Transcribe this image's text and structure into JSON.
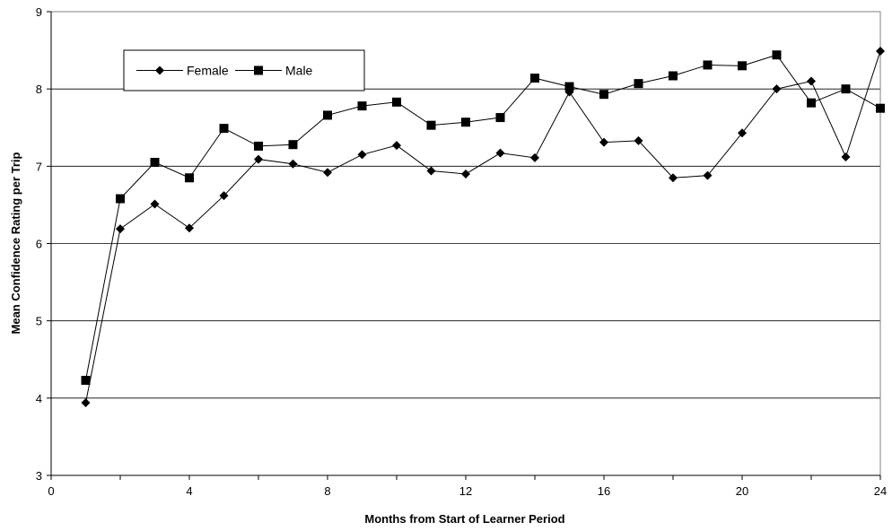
{
  "chart_data": {
    "type": "line",
    "title": "",
    "xlabel": "Months from Start of Learner Period",
    "ylabel": "Mean Confidence Rating per Trip",
    "xlim": [
      0,
      24
    ],
    "ylim": [
      3,
      9
    ],
    "x_ticks": [
      0,
      4,
      8,
      12,
      16,
      20,
      24
    ],
    "y_ticks": [
      3,
      4,
      5,
      6,
      7,
      8,
      9
    ],
    "grid": "horizontal",
    "legend_position": "top-left",
    "x": [
      1,
      2,
      3,
      4,
      5,
      6,
      7,
      8,
      9,
      10,
      11,
      12,
      13,
      14,
      15,
      16,
      17,
      18,
      19,
      20,
      21,
      22,
      23,
      24
    ],
    "series": [
      {
        "name": "Female",
        "marker": "diamond",
        "color": "#000000",
        "values": [
          3.94,
          6.19,
          6.51,
          6.2,
          6.62,
          7.09,
          7.03,
          6.92,
          7.15,
          7.27,
          6.94,
          6.9,
          7.17,
          7.11,
          7.96,
          7.31,
          7.33,
          6.85,
          6.88,
          7.43,
          8.0,
          8.1,
          7.12,
          8.49
        ]
      },
      {
        "name": "Male",
        "marker": "square",
        "color": "#000000",
        "values": [
          4.23,
          6.58,
          7.05,
          6.85,
          7.49,
          7.26,
          7.28,
          7.66,
          7.78,
          7.83,
          7.53,
          7.57,
          7.63,
          8.14,
          8.03,
          7.93,
          8.07,
          8.17,
          8.31,
          8.3,
          8.44,
          7.82,
          8.0,
          7.75
        ]
      }
    ]
  }
}
